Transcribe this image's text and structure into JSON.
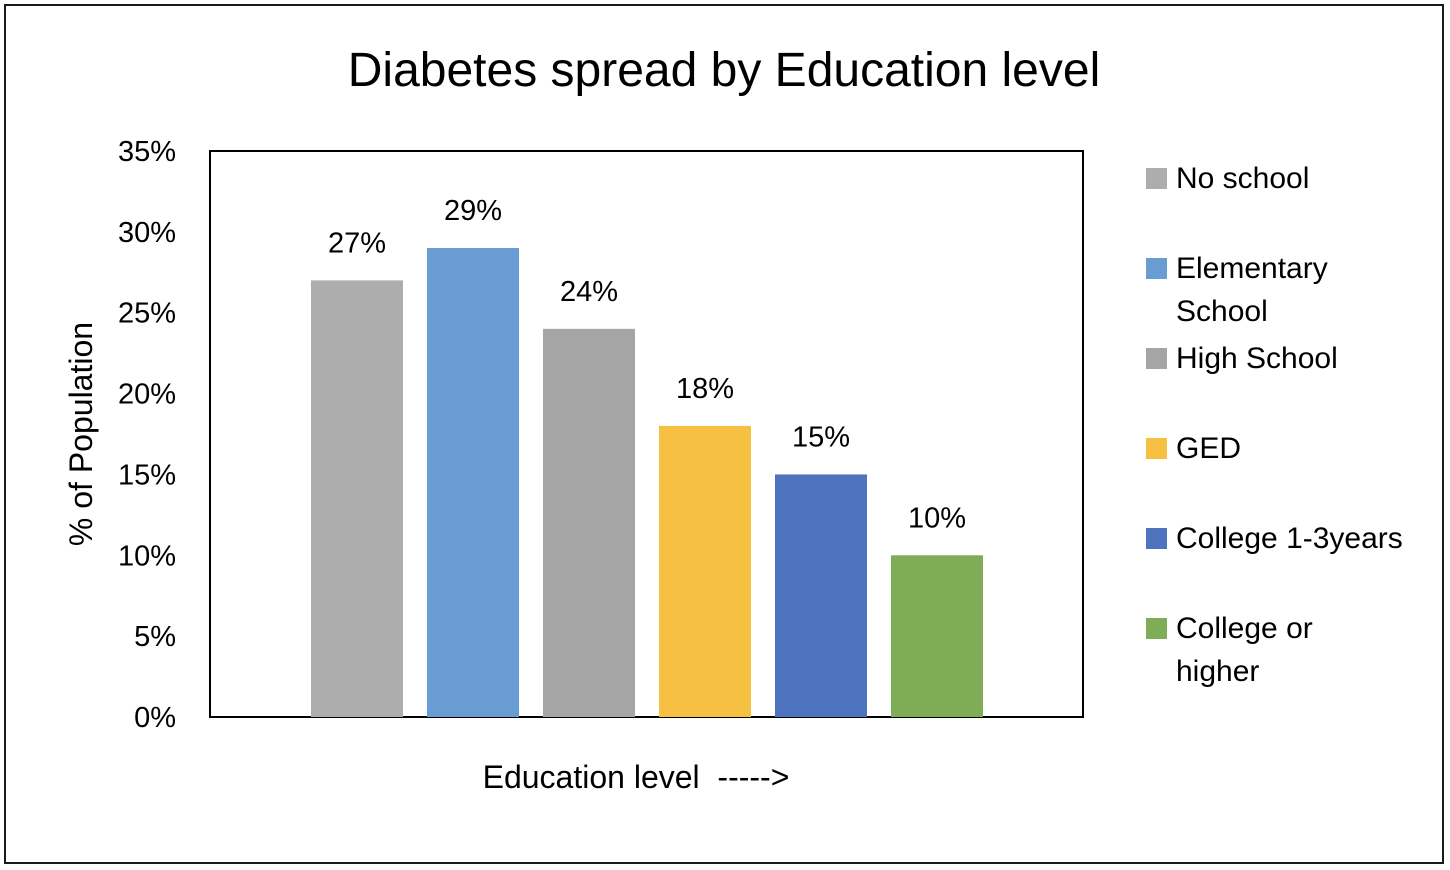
{
  "chart_data": {
    "type": "bar",
    "title": "Diabetes spread by Education level",
    "xlabel": "Education level  ----->",
    "ylabel": "% of Population",
    "ylim": [
      0,
      0.35
    ],
    "yticks": [
      0,
      0.05,
      0.1,
      0.15,
      0.2,
      0.25,
      0.3,
      0.35
    ],
    "ytick_labels": [
      "0%",
      "5%",
      "10%",
      "15%",
      "20%",
      "25%",
      "30%",
      "35%"
    ],
    "grid": false,
    "legend_position": "right",
    "series": [
      {
        "name": "No school",
        "legend_lines": [
          "No school"
        ],
        "value": 0.27,
        "data_label": "27%",
        "color": "#ADADAD"
      },
      {
        "name": "Elementary School",
        "legend_lines": [
          "Elementary",
          "School"
        ],
        "value": 0.29,
        "data_label": "29%",
        "color": "#699CD3"
      },
      {
        "name": "High School",
        "legend_lines": [
          "High School"
        ],
        "value": 0.24,
        "data_label": "24%",
        "color": "#A5A5A5"
      },
      {
        "name": "GED",
        "legend_lines": [
          "GED"
        ],
        "value": 0.18,
        "data_label": "18%",
        "color": "#F6C043"
      },
      {
        "name": "College 1-3years",
        "legend_lines": [
          "College 1-3years"
        ],
        "value": 0.15,
        "data_label": "15%",
        "color": "#4E74BF"
      },
      {
        "name": "College or higher",
        "legend_lines": [
          "College or",
          "higher"
        ],
        "value": 0.1,
        "data_label": "10%",
        "color": "#7FAC57"
      }
    ]
  }
}
